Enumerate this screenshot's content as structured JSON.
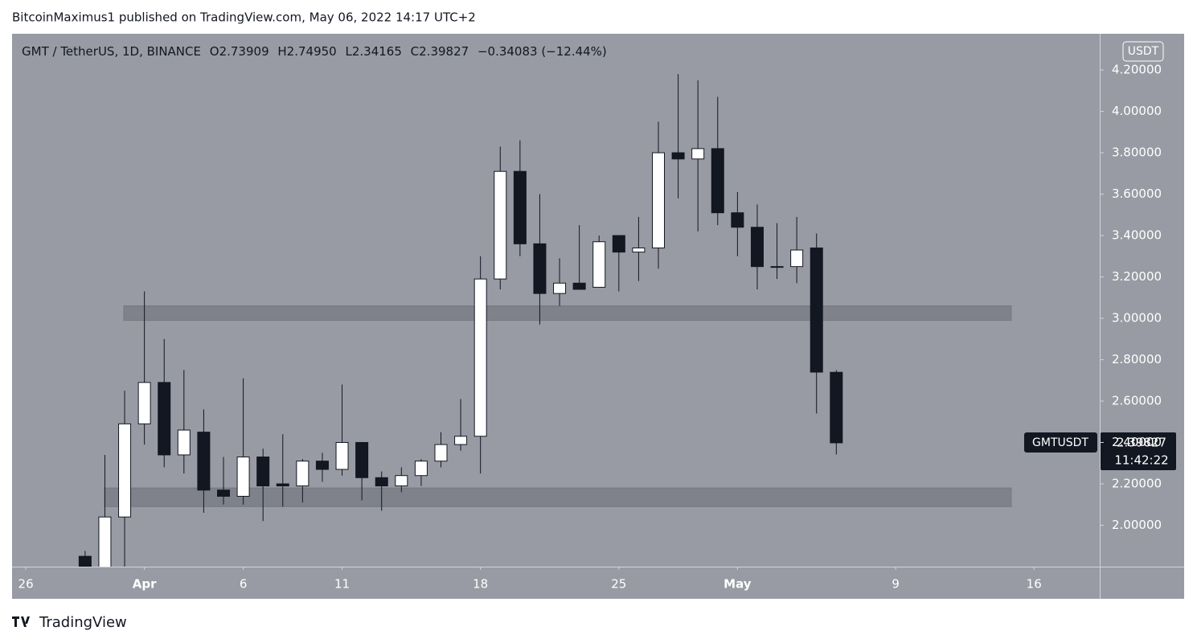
{
  "header": {
    "publisher": "BitcoinMaximus1 published on TradingView.com, May 06, 2022 14:17 UTC+2"
  },
  "legend": {
    "symbol": "GMT / TetherUS, 1D, BINANCE",
    "o_label": "O",
    "open": "2.73909",
    "h_label": "H",
    "high": "2.74950",
    "l_label": "L",
    "low": "2.34165",
    "c_label": "C",
    "close": "2.39827",
    "change": "−0.34083 (−12.44%)"
  },
  "price_tag": {
    "symbol": "GMTUSDT",
    "price": "2.39827",
    "countdown": "11:42:22"
  },
  "footer": {
    "brand": "TradingView"
  },
  "chart_data": {
    "type": "candlestick",
    "y_unit": "USDT",
    "x": [
      "2022-03-29",
      "2022-03-30",
      "2022-03-31",
      "2022-04-01",
      "2022-04-02",
      "2022-04-03",
      "2022-04-04",
      "2022-04-05",
      "2022-04-06",
      "2022-04-07",
      "2022-04-08",
      "2022-04-09",
      "2022-04-10",
      "2022-04-11",
      "2022-04-12",
      "2022-04-13",
      "2022-04-14",
      "2022-04-15",
      "2022-04-16",
      "2022-04-17",
      "2022-04-18",
      "2022-04-19",
      "2022-04-20",
      "2022-04-21",
      "2022-04-22",
      "2022-04-23",
      "2022-04-24",
      "2022-04-25",
      "2022-04-26",
      "2022-04-27",
      "2022-04-28",
      "2022-04-29",
      "2022-04-30",
      "2022-05-01",
      "2022-05-02",
      "2022-05-03",
      "2022-05-04",
      "2022-05-05",
      "2022-05-06"
    ],
    "open": [
      1.85,
      1.78,
      2.04,
      2.49,
      2.69,
      2.34,
      2.45,
      2.17,
      2.14,
      2.33,
      2.2,
      2.19,
      2.31,
      2.27,
      2.4,
      2.23,
      2.19,
      2.24,
      2.31,
      2.39,
      2.43,
      3.19,
      3.71,
      3.36,
      3.12,
      3.17,
      3.15,
      3.4,
      3.32,
      3.34,
      3.8,
      3.77,
      3.82,
      3.51,
      3.44,
      3.25,
      3.25,
      3.34,
      2.73909
    ],
    "high": [
      1.876,
      2.34,
      2.65,
      3.13,
      2.9,
      2.75,
      2.56,
      2.33,
      2.71,
      2.37,
      2.44,
      2.32,
      2.35,
      2.68,
      2.4,
      2.26,
      2.28,
      2.32,
      2.45,
      2.61,
      3.3,
      3.83,
      3.86,
      3.6,
      3.29,
      3.45,
      3.4,
      3.4,
      3.49,
      3.95,
      4.18,
      4.15,
      4.07,
      3.61,
      3.55,
      3.46,
      3.49,
      3.41,
      2.7495
    ],
    "low": [
      1.7,
      1.72,
      1.8,
      2.39,
      2.28,
      2.25,
      2.06,
      2.1,
      2.1,
      2.02,
      2.09,
      2.11,
      2.21,
      2.24,
      2.12,
      2.07,
      2.16,
      2.19,
      2.28,
      2.36,
      2.25,
      3.14,
      3.3,
      2.97,
      3.06,
      3.14,
      3.15,
      3.13,
      3.18,
      3.24,
      3.58,
      3.42,
      3.45,
      3.3,
      3.14,
      3.19,
      3.17,
      2.54,
      2.34165
    ],
    "close": [
      1.75,
      2.04,
      2.49,
      2.69,
      2.34,
      2.46,
      2.17,
      2.14,
      2.33,
      2.19,
      2.19,
      2.31,
      2.27,
      2.4,
      2.23,
      2.19,
      2.24,
      2.31,
      2.39,
      2.43,
      3.19,
      3.71,
      3.36,
      3.12,
      3.17,
      3.14,
      3.37,
      3.32,
      3.34,
      3.8,
      3.77,
      3.82,
      3.51,
      3.44,
      3.25,
      3.25,
      3.33,
      2.74,
      2.39827
    ],
    "up_color": "#ffffff",
    "down_color": "#131722",
    "zones": [
      {
        "from": 2.99,
        "to": 3.06
      },
      {
        "from": 2.09,
        "to": 2.18
      }
    ],
    "xlim": [
      "2022-03-25",
      "2022-05-19"
    ],
    "xticks": [
      {
        "value": "2022-03-26",
        "label": "26"
      },
      {
        "value": "2022-04-01",
        "label": "Apr"
      },
      {
        "value": "2022-04-06",
        "label": "6"
      },
      {
        "value": "2022-04-11",
        "label": "11"
      },
      {
        "value": "2022-04-18",
        "label": "18"
      },
      {
        "value": "2022-04-25",
        "label": "25"
      },
      {
        "value": "2022-05-01",
        "label": "May"
      },
      {
        "value": "2022-05-09",
        "label": "9"
      },
      {
        "value": "2022-05-16",
        "label": "16"
      }
    ],
    "ylim": [
      1.8,
      4.375
    ],
    "yticks": [
      {
        "value": 2.0,
        "label": "2.00000"
      },
      {
        "value": 2.2,
        "label": "2.20000"
      },
      {
        "value": 2.4,
        "label": "2.40000"
      },
      {
        "value": 2.6,
        "label": "2.60000"
      },
      {
        "value": 2.8,
        "label": "2.80000"
      },
      {
        "value": 3.0,
        "label": "3.00000"
      },
      {
        "value": 3.2,
        "label": "3.20000"
      },
      {
        "value": 3.4,
        "label": "3.40000"
      },
      {
        "value": 3.6,
        "label": "3.60000"
      },
      {
        "value": 3.8,
        "label": "3.80000"
      },
      {
        "value": 4.0,
        "label": "4.00000"
      },
      {
        "value": 4.2,
        "label": "4.20000"
      }
    ]
  }
}
